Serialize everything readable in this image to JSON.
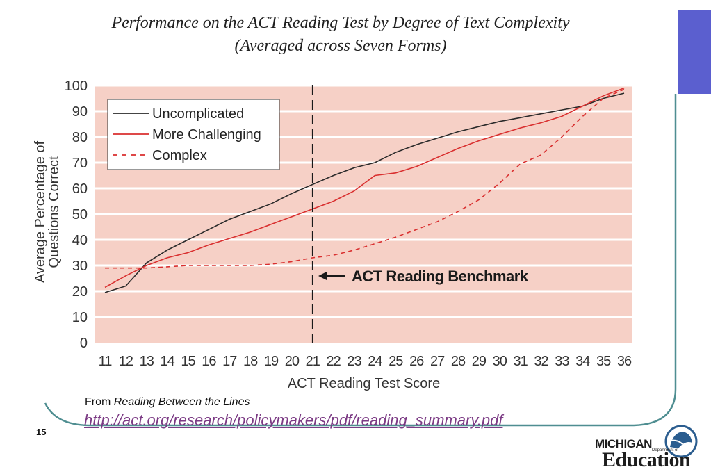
{
  "slide": {
    "title_line1": "Performance on the ACT Reading Test by Degree of Text Complexity",
    "title_line2": "(Averaged across Seven Forms)",
    "caption_prefix": "From ",
    "caption_source": "Reading Between the Lines",
    "source_link": "http://act.org/research/policymakers/pdf/reading_summary.pdf",
    "slide_number": "15",
    "logo_michigan": "MICHIGAN",
    "logo_dept": "Department of",
    "logo_education": "Education"
  },
  "colors": {
    "plot_background": "#f6d0c6",
    "gridline": "#ffffff",
    "uncomplicated": "#2a2a2a",
    "more_challenging": "#d92f2f",
    "complex": "#d92f2f",
    "accent_tab": "#5b5fcf",
    "frame": "#4f8e91",
    "link": "#7b3a84"
  },
  "chart_data": {
    "type": "line",
    "title": "Performance on the ACT Reading Test by Degree of Text Complexity (Averaged across Seven Forms)",
    "xlabel": "ACT Reading Test Score",
    "ylabel": "Average Percentage of Questions Correct",
    "ylabel_line1": "Average Percentage of",
    "ylabel_line2": "Questions Correct",
    "x": [
      11,
      12,
      13,
      14,
      15,
      16,
      17,
      18,
      19,
      20,
      21,
      22,
      23,
      24,
      25,
      26,
      27,
      28,
      29,
      30,
      31,
      32,
      33,
      34,
      35,
      36
    ],
    "xlim": [
      11,
      36
    ],
    "ylim": [
      0,
      100
    ],
    "yticks": [
      0,
      10,
      20,
      30,
      40,
      50,
      60,
      70,
      80,
      90,
      100
    ],
    "grid": true,
    "legend_position": "top-left",
    "series": [
      {
        "name": "Uncomplicated",
        "style": "solid",
        "color": "#2a2a2a",
        "values": [
          19.5,
          22,
          31,
          36,
          40,
          44,
          48,
          51,
          54,
          58,
          61.5,
          65,
          68,
          70,
          74,
          77,
          79.5,
          82,
          84,
          86,
          87.5,
          89,
          90.5,
          92,
          95,
          97
        ]
      },
      {
        "name": "More Challenging",
        "style": "solid",
        "color": "#d92f2f",
        "values": [
          21.5,
          26,
          30,
          33,
          35,
          38,
          40.5,
          43,
          46,
          49,
          52,
          55,
          59,
          65,
          66,
          68.5,
          72,
          75.5,
          78.5,
          81,
          83.5,
          85.5,
          88,
          92,
          96,
          99
        ]
      },
      {
        "name": "Complex",
        "style": "dashed",
        "color": "#d92f2f",
        "values": [
          29,
          29,
          29,
          29.5,
          30,
          30,
          30,
          30,
          30.5,
          31.5,
          33,
          34,
          36,
          38.5,
          41,
          44,
          47,
          51,
          55.5,
          62,
          69.5,
          73,
          80,
          88,
          95,
          98.5
        ]
      }
    ],
    "annotations": [
      {
        "text": "ACT Reading Benchmark",
        "x": 21,
        "marker": "dashed vertical line with leftward arrow"
      }
    ]
  }
}
